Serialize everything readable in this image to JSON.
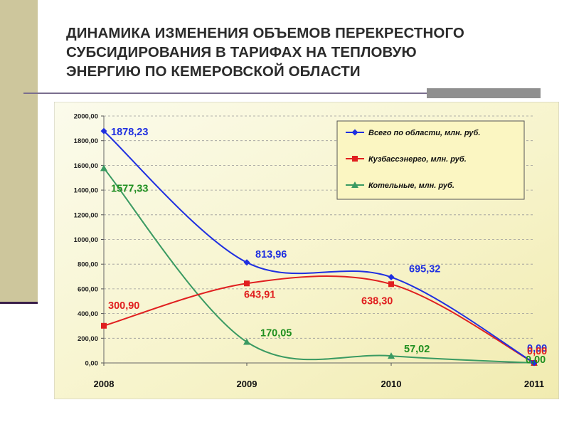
{
  "slide": {
    "title": "ДИНАМИКА ИЗМЕНЕНИЯ ОБЪЕМОВ ПЕРЕКРЕСТНОГО\nСУБСИДИРОВАНИЯ В ТАРИФАХ НА ТЕПЛОВУЮ\nЭНЕРГИЮ ПО КЕМЕРОВСКОЙ ОБЛАСТИ"
  },
  "chart_data": {
    "type": "line",
    "categories": [
      "2008",
      "2009",
      "2010",
      "2011"
    ],
    "ylim": [
      0,
      2000
    ],
    "yticks": [
      "0,00",
      "200,00",
      "400,00",
      "600,00",
      "800,00",
      "1000,00",
      "1200,00",
      "1400,00",
      "1600,00",
      "1800,00",
      "2000,00"
    ],
    "grid": true,
    "legend_position": "top-right",
    "series": [
      {
        "name": "Всего по области, млн. руб.",
        "values": [
          1878.23,
          813.96,
          695.32,
          0.0
        ],
        "labels": [
          "1878,23",
          "813,96",
          "695,32",
          "0,00"
        ],
        "color": "#1f2fe0",
        "marker": "diamond"
      },
      {
        "name": "Кузбассэнерго, млн. руб.",
        "values": [
          300.9,
          643.91,
          638.3,
          0.0
        ],
        "labels": [
          "300,90",
          "643,91",
          "638,30",
          "0,00"
        ],
        "color": "#e01f1f",
        "marker": "square"
      },
      {
        "name": "Котельные, млн. руб.",
        "values": [
          1577.33,
          170.05,
          57.02,
          0.0
        ],
        "labels": [
          "1577,33",
          "170,05",
          "57,02",
          "0,00"
        ],
        "color": "#3a9a62",
        "label_color": "#1f8f1f",
        "marker": "triangle"
      }
    ]
  }
}
